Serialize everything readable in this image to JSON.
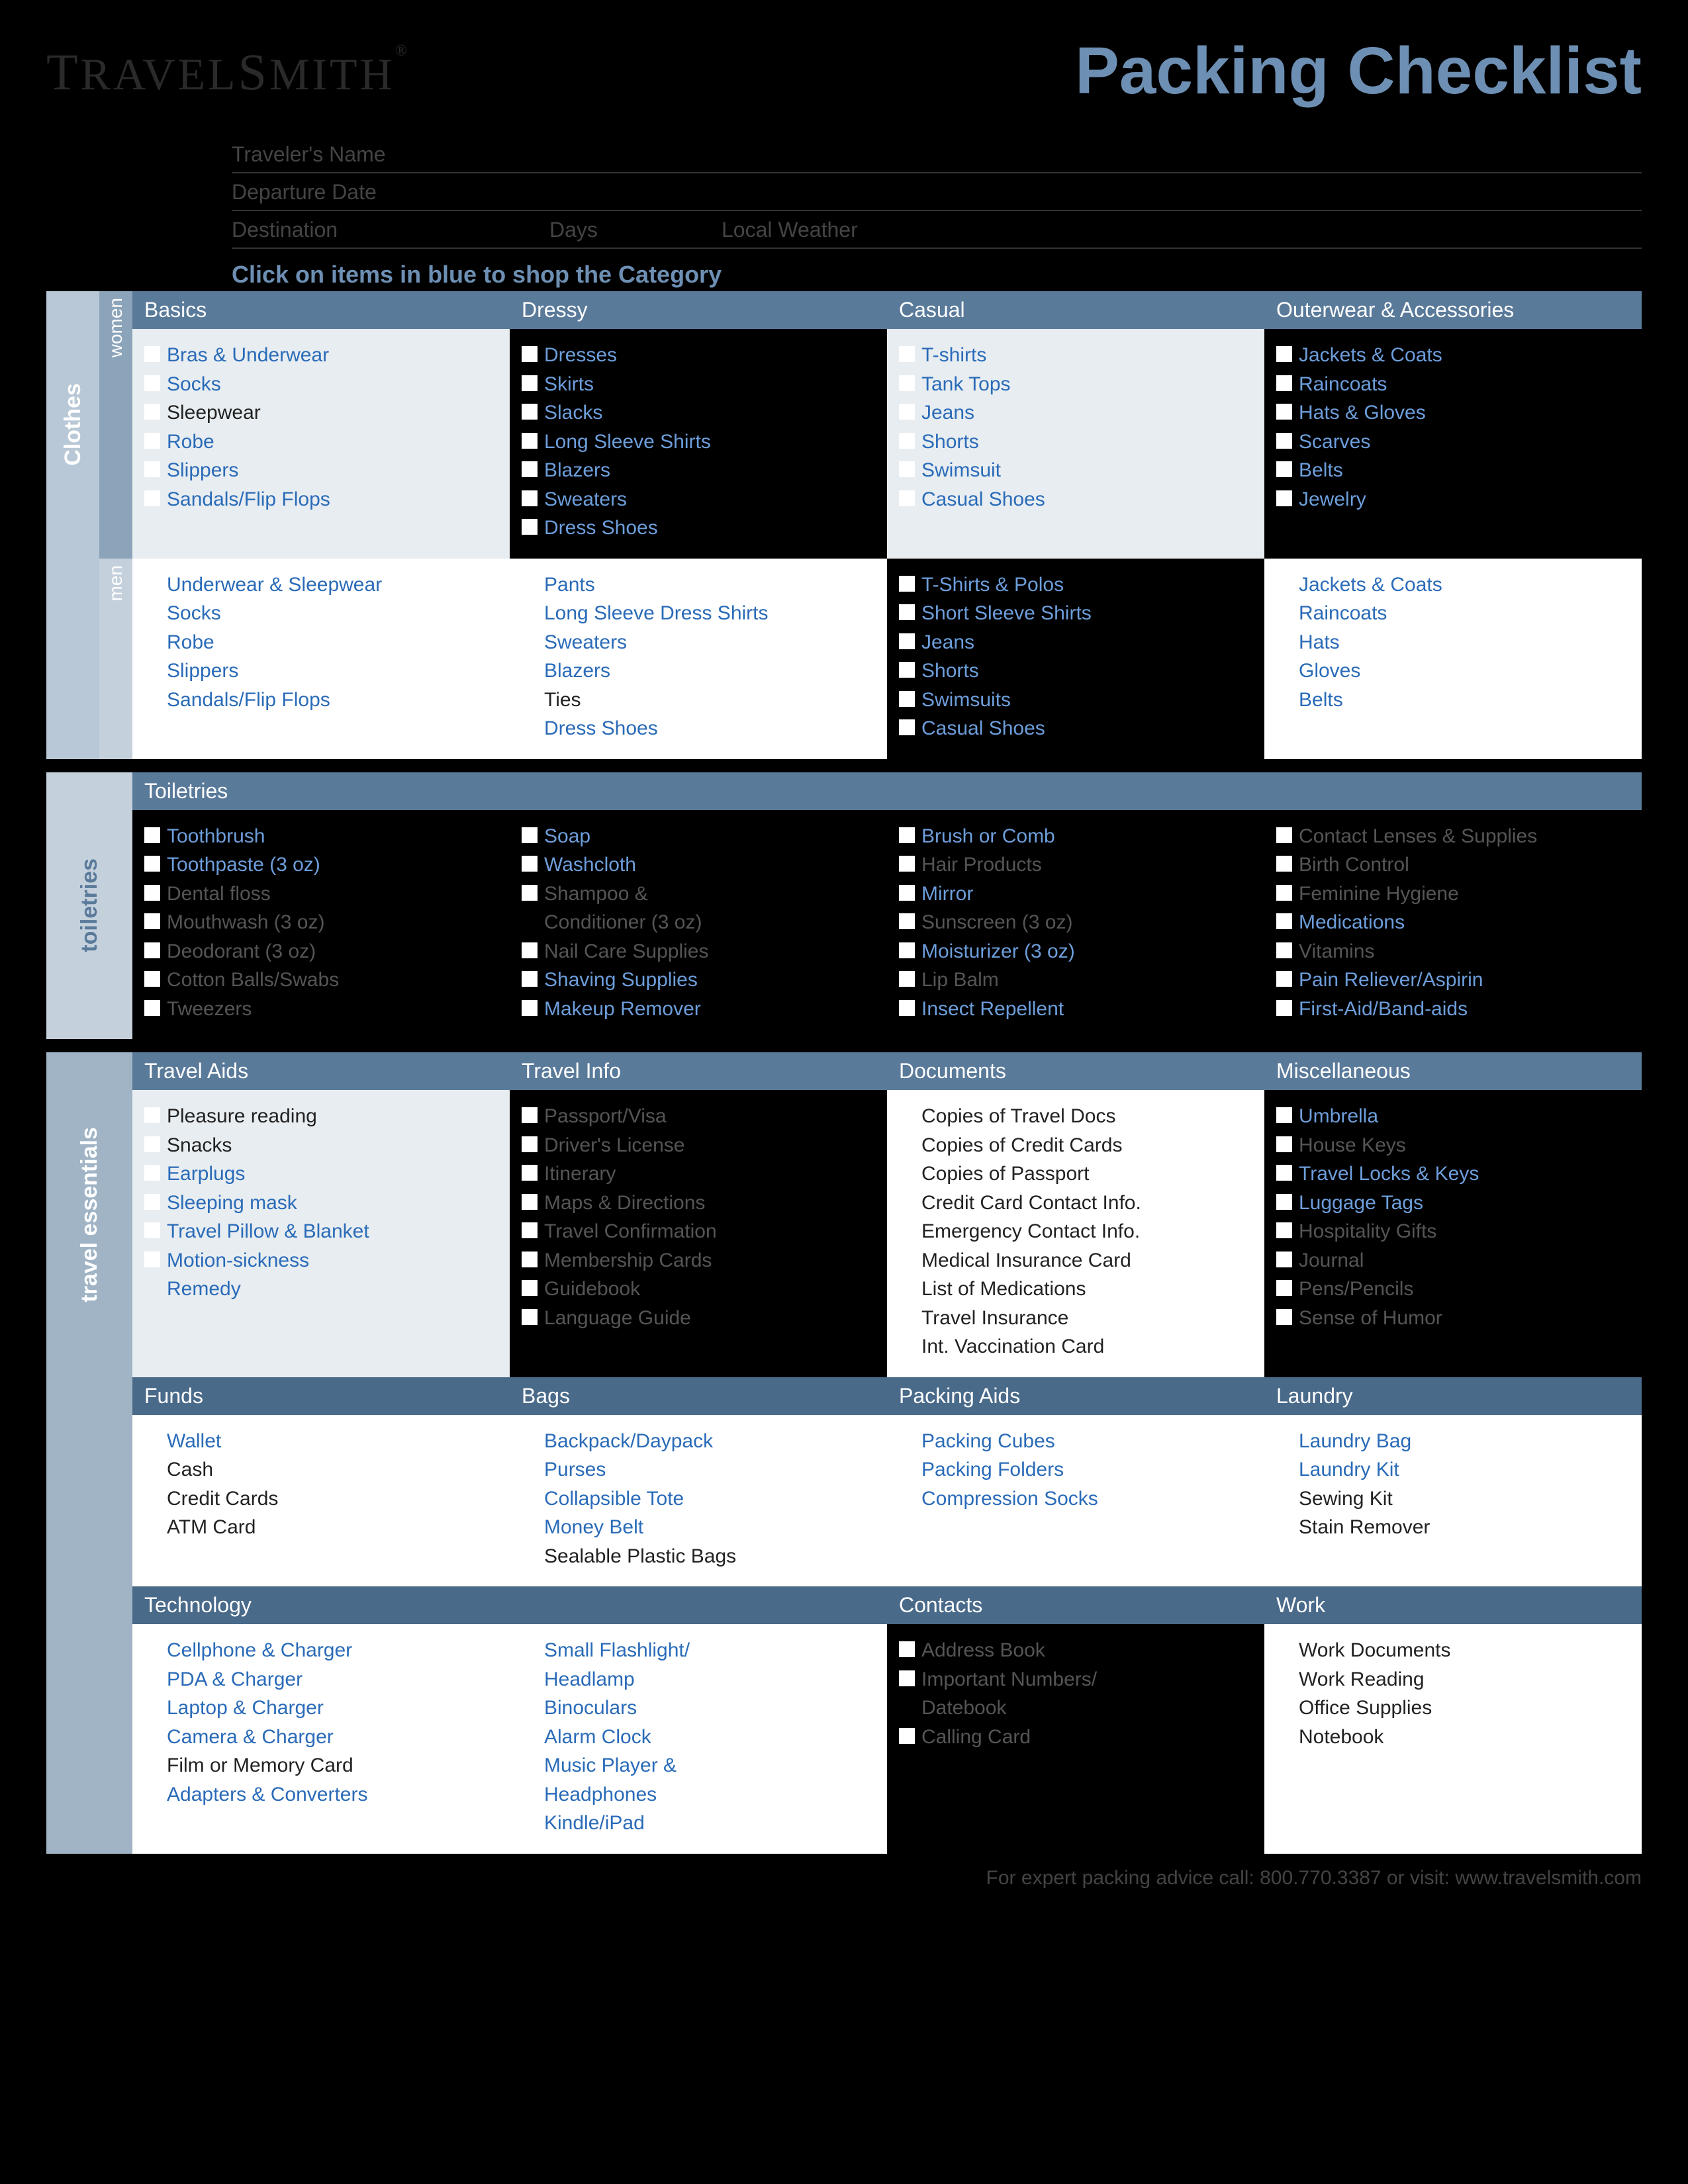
{
  "colors": {
    "accent": "#6d8fb3",
    "headerBg1": "#5a7a9a",
    "headerBg2": "#4a6a8a",
    "lightCell": "#e8edf1",
    "darkCell": "#000000",
    "sideTab1": "#b8c8d6",
    "sideTab2": "#a0b4c6",
    "sideTab3": "#8ca4ba",
    "subTab": "#c4d0dc",
    "linkBlue": "#3a6ea8",
    "textDark": "#222222",
    "textMuted": "#555555",
    "textWhite": "#ffffff"
  },
  "logo": "TRAVELSMITH",
  "title": "Packing Checklist",
  "fields": {
    "name": "Traveler's Name",
    "date": "Departure Date",
    "dest": "Destination",
    "days": "Days",
    "weather": "Local Weather"
  },
  "instruction": "Click on items in blue to shop the Category",
  "sideLabels": {
    "clothes": "Clothes",
    "women": "women",
    "men": "men",
    "toiletries": "toiletries",
    "essentials": "travel essentials"
  },
  "clothesHeaders": [
    "Basics",
    "Dressy",
    "Casual",
    "Outerwear & Accessories"
  ],
  "womenBasics": [
    {
      "t": "Bras & Underwear",
      "link": true
    },
    {
      "t": "Socks",
      "link": true
    },
    {
      "t": "Sleepwear",
      "link": false
    },
    {
      "t": "Robe",
      "link": true
    },
    {
      "t": "Slippers",
      "link": true
    },
    {
      "t": "Sandals/Flip Flops",
      "link": true
    }
  ],
  "womenDressy": [
    {
      "t": "Dresses",
      "link": true
    },
    {
      "t": "Skirts",
      "link": true
    },
    {
      "t": "Slacks",
      "link": true
    },
    {
      "t": "Long Sleeve Shirts",
      "link": true
    },
    {
      "t": "Blazers",
      "link": true
    },
    {
      "t": "Sweaters",
      "link": true
    },
    {
      "t": "Dress Shoes",
      "link": true
    }
  ],
  "womenCasual": [
    {
      "t": "T-shirts",
      "link": true
    },
    {
      "t": "Tank Tops",
      "link": true
    },
    {
      "t": "Jeans",
      "link": true
    },
    {
      "t": "Shorts",
      "link": true
    },
    {
      "t": "Swimsuit",
      "link": true
    },
    {
      "t": "Casual Shoes",
      "link": true
    }
  ],
  "womenOuter": [
    {
      "t": "Jackets & Coats",
      "link": true
    },
    {
      "t": "Raincoats",
      "link": true
    },
    {
      "t": "Hats & Gloves",
      "link": true
    },
    {
      "t": "Scarves",
      "link": true
    },
    {
      "t": "Belts",
      "link": true
    },
    {
      "t": "Jewelry",
      "link": true
    }
  ],
  "menBasics": [
    {
      "t": "Underwear & Sleepwear",
      "link": true
    },
    {
      "t": "Socks",
      "link": true
    },
    {
      "t": "Robe",
      "link": true
    },
    {
      "t": "Slippers",
      "link": true
    },
    {
      "t": "Sandals/Flip Flops",
      "link": true
    }
  ],
  "menDressy": [
    {
      "t": "Pants",
      "link": true
    },
    {
      "t": "Long Sleeve Dress Shirts",
      "link": true
    },
    {
      "t": "Sweaters",
      "link": true
    },
    {
      "t": "Blazers",
      "link": true
    },
    {
      "t": "Ties",
      "link": false
    },
    {
      "t": "Dress Shoes",
      "link": true
    }
  ],
  "menCasual": [
    {
      "t": "T-Shirts & Polos",
      "link": true
    },
    {
      "t": "Short Sleeve Shirts",
      "link": true
    },
    {
      "t": "Jeans",
      "link": true
    },
    {
      "t": "Shorts",
      "link": true
    },
    {
      "t": "Swimsuits",
      "link": true
    },
    {
      "t": "Casual Shoes",
      "link": true
    }
  ],
  "menOuter": [
    {
      "t": "Jackets & Coats",
      "link": true
    },
    {
      "t": "Raincoats",
      "link": true
    },
    {
      "t": "Hats",
      "link": true
    },
    {
      "t": "Gloves",
      "link": true
    },
    {
      "t": "Belts",
      "link": true
    }
  ],
  "toiletriesHeader": "Toiletries",
  "toilCol1": [
    {
      "t": "Toothbrush",
      "link": true
    },
    {
      "t": "Toothpaste (3 oz)",
      "link": true
    },
    {
      "t": "Dental floss",
      "link": false,
      "muted": true
    },
    {
      "t": "Mouthwash (3 oz)",
      "link": false,
      "muted": true
    },
    {
      "t": "Deodorant (3 oz)",
      "link": false,
      "muted": true
    },
    {
      "t": "Cotton Balls/Swabs",
      "link": false,
      "muted": true
    },
    {
      "t": "Tweezers",
      "link": false,
      "muted": true
    }
  ],
  "toilCol2": [
    {
      "t": "Soap",
      "link": true
    },
    {
      "t": "Washcloth",
      "link": true
    },
    {
      "t": "Shampoo &",
      "link": false,
      "muted": true
    },
    {
      "t": "Conditioner (3 oz)",
      "link": false,
      "muted": true,
      "cont": true
    },
    {
      "t": "Nail Care Supplies",
      "link": false,
      "muted": true
    },
    {
      "t": "Shaving Supplies",
      "link": true
    },
    {
      "t": "Makeup Remover",
      "link": true
    }
  ],
  "toilCol3": [
    {
      "t": "Brush or Comb",
      "link": true
    },
    {
      "t": "Hair Products",
      "link": false,
      "muted": true
    },
    {
      "t": "Mirror",
      "link": true
    },
    {
      "t": "Sunscreen (3 oz)",
      "link": false,
      "muted": true
    },
    {
      "t": "Moisturizer (3 oz)",
      "link": true
    },
    {
      "t": "Lip Balm",
      "link": false,
      "muted": true
    },
    {
      "t": "Insect Repellent",
      "link": true
    }
  ],
  "toilCol4": [
    {
      "t": "Contact Lenses & Supplies",
      "link": false,
      "muted": true
    },
    {
      "t": "Birth Control",
      "link": false,
      "muted": true
    },
    {
      "t": "Feminine Hygiene",
      "link": false,
      "muted": true
    },
    {
      "t": "Medications",
      "link": true
    },
    {
      "t": "Vitamins",
      "link": false,
      "muted": true
    },
    {
      "t": "Pain Reliever/Aspirin",
      "link": true
    },
    {
      "t": "First-Aid/Band-aids",
      "link": true
    }
  ],
  "essHeaders1": [
    "Travel Aids",
    "Travel Info",
    "Documents",
    "Miscellaneous"
  ],
  "ess1Col1": [
    {
      "t": "Pleasure reading",
      "link": false
    },
    {
      "t": "Snacks",
      "link": false
    },
    {
      "t": "Earplugs",
      "link": true
    },
    {
      "t": "Sleeping mask",
      "link": true
    },
    {
      "t": "Travel Pillow & Blanket",
      "link": true
    },
    {
      "t": "Motion-sickness",
      "link": true
    },
    {
      "t": "Remedy",
      "link": true,
      "cont": true
    }
  ],
  "ess1Col2": [
    {
      "t": "Passport/Visa",
      "link": false,
      "muted": true
    },
    {
      "t": "Driver's License",
      "link": false,
      "muted": true
    },
    {
      "t": "Itinerary",
      "link": false,
      "muted": true
    },
    {
      "t": "Maps & Directions",
      "link": false,
      "muted": true
    },
    {
      "t": "Travel Confirmation",
      "link": false,
      "muted": true
    },
    {
      "t": "Membership Cards",
      "link": false,
      "muted": true
    },
    {
      "t": "Guidebook",
      "link": false,
      "muted": true
    },
    {
      "t": "Language Guide",
      "link": false,
      "muted": true
    }
  ],
  "ess1Col3": [
    {
      "t": "Copies of Travel Docs",
      "link": false
    },
    {
      "t": "Copies of Credit Cards",
      "link": false
    },
    {
      "t": "Copies of Passport",
      "link": false
    },
    {
      "t": "Credit Card Contact Info.",
      "link": false
    },
    {
      "t": "Emergency Contact Info.",
      "link": false
    },
    {
      "t": "Medical Insurance Card",
      "link": false
    },
    {
      "t": "List of Medications",
      "link": false
    },
    {
      "t": "Travel Insurance",
      "link": false
    },
    {
      "t": "Int. Vaccination Card",
      "link": false
    }
  ],
  "ess1Col4": [
    {
      "t": "Umbrella",
      "link": true
    },
    {
      "t": "House Keys",
      "link": false,
      "muted": true
    },
    {
      "t": "Travel Locks & Keys",
      "link": true
    },
    {
      "t": "Luggage Tags",
      "link": true
    },
    {
      "t": "Hospitality Gifts",
      "link": false,
      "muted": true
    },
    {
      "t": "Journal",
      "link": false,
      "muted": true
    },
    {
      "t": "Pens/Pencils",
      "link": false,
      "muted": true
    },
    {
      "t": "Sense of Humor",
      "link": false,
      "muted": true
    }
  ],
  "essHeaders2": [
    "Funds",
    "Bags",
    "Packing Aids",
    "Laundry"
  ],
  "ess2Col1": [
    {
      "t": "Wallet",
      "link": true
    },
    {
      "t": "Cash",
      "link": false
    },
    {
      "t": "Credit Cards",
      "link": false
    },
    {
      "t": "ATM Card",
      "link": false
    }
  ],
  "ess2Col2": [
    {
      "t": "Backpack/Daypack",
      "link": true
    },
    {
      "t": "Purses",
      "link": true
    },
    {
      "t": "Collapsible Tote",
      "link": true
    },
    {
      "t": "Money Belt",
      "link": true
    },
    {
      "t": "Sealable Plastic Bags",
      "link": false
    }
  ],
  "ess2Col3": [
    {
      "t": "Packing Cubes",
      "link": true
    },
    {
      "t": "Packing Folders",
      "link": true
    },
    {
      "t": "Compression Socks",
      "link": true
    }
  ],
  "ess2Col4": [
    {
      "t": "Laundry Bag",
      "link": true
    },
    {
      "t": "Laundry Kit",
      "link": true
    },
    {
      "t": "Sewing Kit",
      "link": false
    },
    {
      "t": "Stain Remover",
      "link": false
    }
  ],
  "essHeaders3": [
    "Technology",
    "",
    "Contacts",
    "Work"
  ],
  "ess3Col1": [
    {
      "t": "Cellphone & Charger",
      "link": true
    },
    {
      "t": "PDA & Charger",
      "link": true
    },
    {
      "t": "Laptop & Charger",
      "link": true
    },
    {
      "t": "Camera & Charger",
      "link": true
    },
    {
      "t": "Film or Memory Card",
      "link": false
    },
    {
      "t": "Adapters & Converters",
      "link": true
    }
  ],
  "ess3Col2": [
    {
      "t": "Small Flashlight/",
      "link": true
    },
    {
      "t": "Headlamp",
      "link": true,
      "cont": true
    },
    {
      "t": "Binoculars",
      "link": true
    },
    {
      "t": "Alarm Clock",
      "link": true
    },
    {
      "t": "Music Player &",
      "link": true
    },
    {
      "t": "Headphones",
      "link": true,
      "cont": true
    },
    {
      "t": "Kindle/iPad",
      "link": true
    }
  ],
  "ess3Col3": [
    {
      "t": "Address Book",
      "link": false,
      "muted": true
    },
    {
      "t": "Important Numbers/",
      "link": false,
      "muted": true
    },
    {
      "t": "Datebook",
      "link": false,
      "muted": true,
      "cont": true
    },
    {
      "t": "Calling Card",
      "link": false,
      "muted": true
    }
  ],
  "ess3Col4": [
    {
      "t": "Work Documents",
      "link": false
    },
    {
      "t": "Work Reading",
      "link": false
    },
    {
      "t": "Office Supplies",
      "link": false
    },
    {
      "t": "Notebook",
      "link": false
    }
  ],
  "footer": "For expert packing advice call: 800.770.3387 or visit: www.travelsmith.com"
}
